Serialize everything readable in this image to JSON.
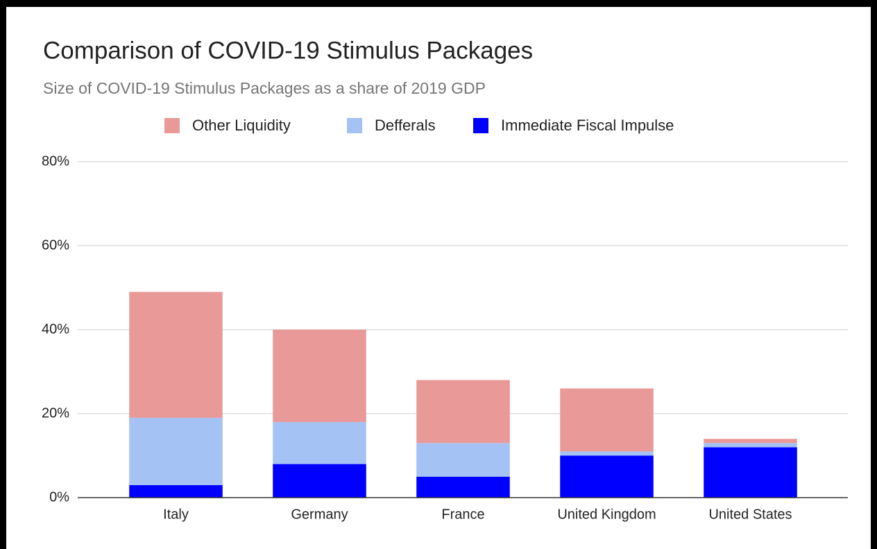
{
  "chart_data": {
    "type": "stacked_bar",
    "title": "Comparison of COVID-19 Stimulus Packages",
    "subtitle": "Size of COVID-19 Stimulus Packages as a share of 2019 GDP",
    "categories": [
      "Italy",
      "Germany",
      "France",
      "United Kingdom",
      "United States"
    ],
    "series": [
      {
        "name": "Other Liquidity",
        "color": "#ea9999",
        "values": [
          30,
          22,
          15,
          15,
          1
        ]
      },
      {
        "name": "Defferals",
        "color": "#a4c2f4",
        "values": [
          16,
          10,
          8,
          1,
          1
        ]
      },
      {
        "name": "Immediate Fiscal Impulse",
        "color": "#0000ff",
        "values": [
          3,
          8,
          5,
          10,
          12
        ]
      }
    ],
    "ylim": [
      0,
      80
    ],
    "yticks": [
      {
        "value": 0,
        "label": "0%"
      },
      {
        "value": 20,
        "label": "20%"
      },
      {
        "value": 40,
        "label": "40%"
      },
      {
        "value": 60,
        "label": "60%"
      },
      {
        "value": 80,
        "label": "80%"
      }
    ],
    "grid": true,
    "legend": "top"
  }
}
